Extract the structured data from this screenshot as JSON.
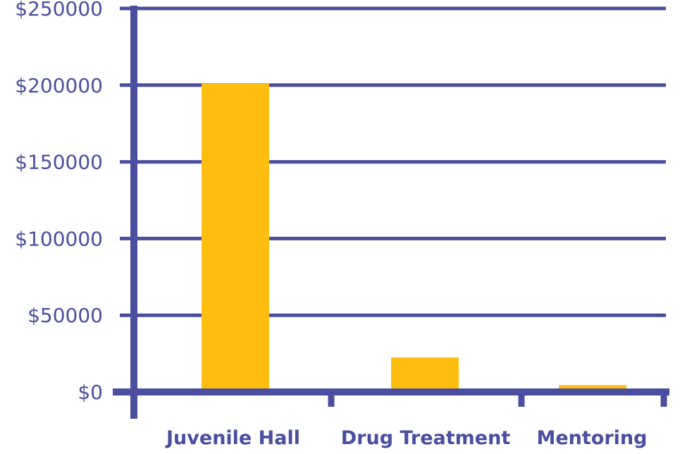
{
  "chart_data": {
    "type": "bar",
    "title": "",
    "xlabel": "",
    "ylabel": "",
    "categories": [
      "Juvenile Hall",
      "Drug Treatment",
      "Mentoring"
    ],
    "values": [
      201000,
      22500,
      4500
    ],
    "ylim": [
      0,
      250000
    ],
    "yticks": [
      0,
      50000,
      100000,
      150000,
      200000,
      250000
    ],
    "ytick_labels": [
      "$0",
      "$50000",
      "$100000",
      "$150000",
      "$200000",
      "$250000"
    ],
    "grid": true,
    "legend": "none",
    "colors": {
      "bar": "#FDBE10",
      "axis": "#4A4E9E",
      "grid": "#4A4E9E",
      "text": "#4A4E9E"
    }
  }
}
